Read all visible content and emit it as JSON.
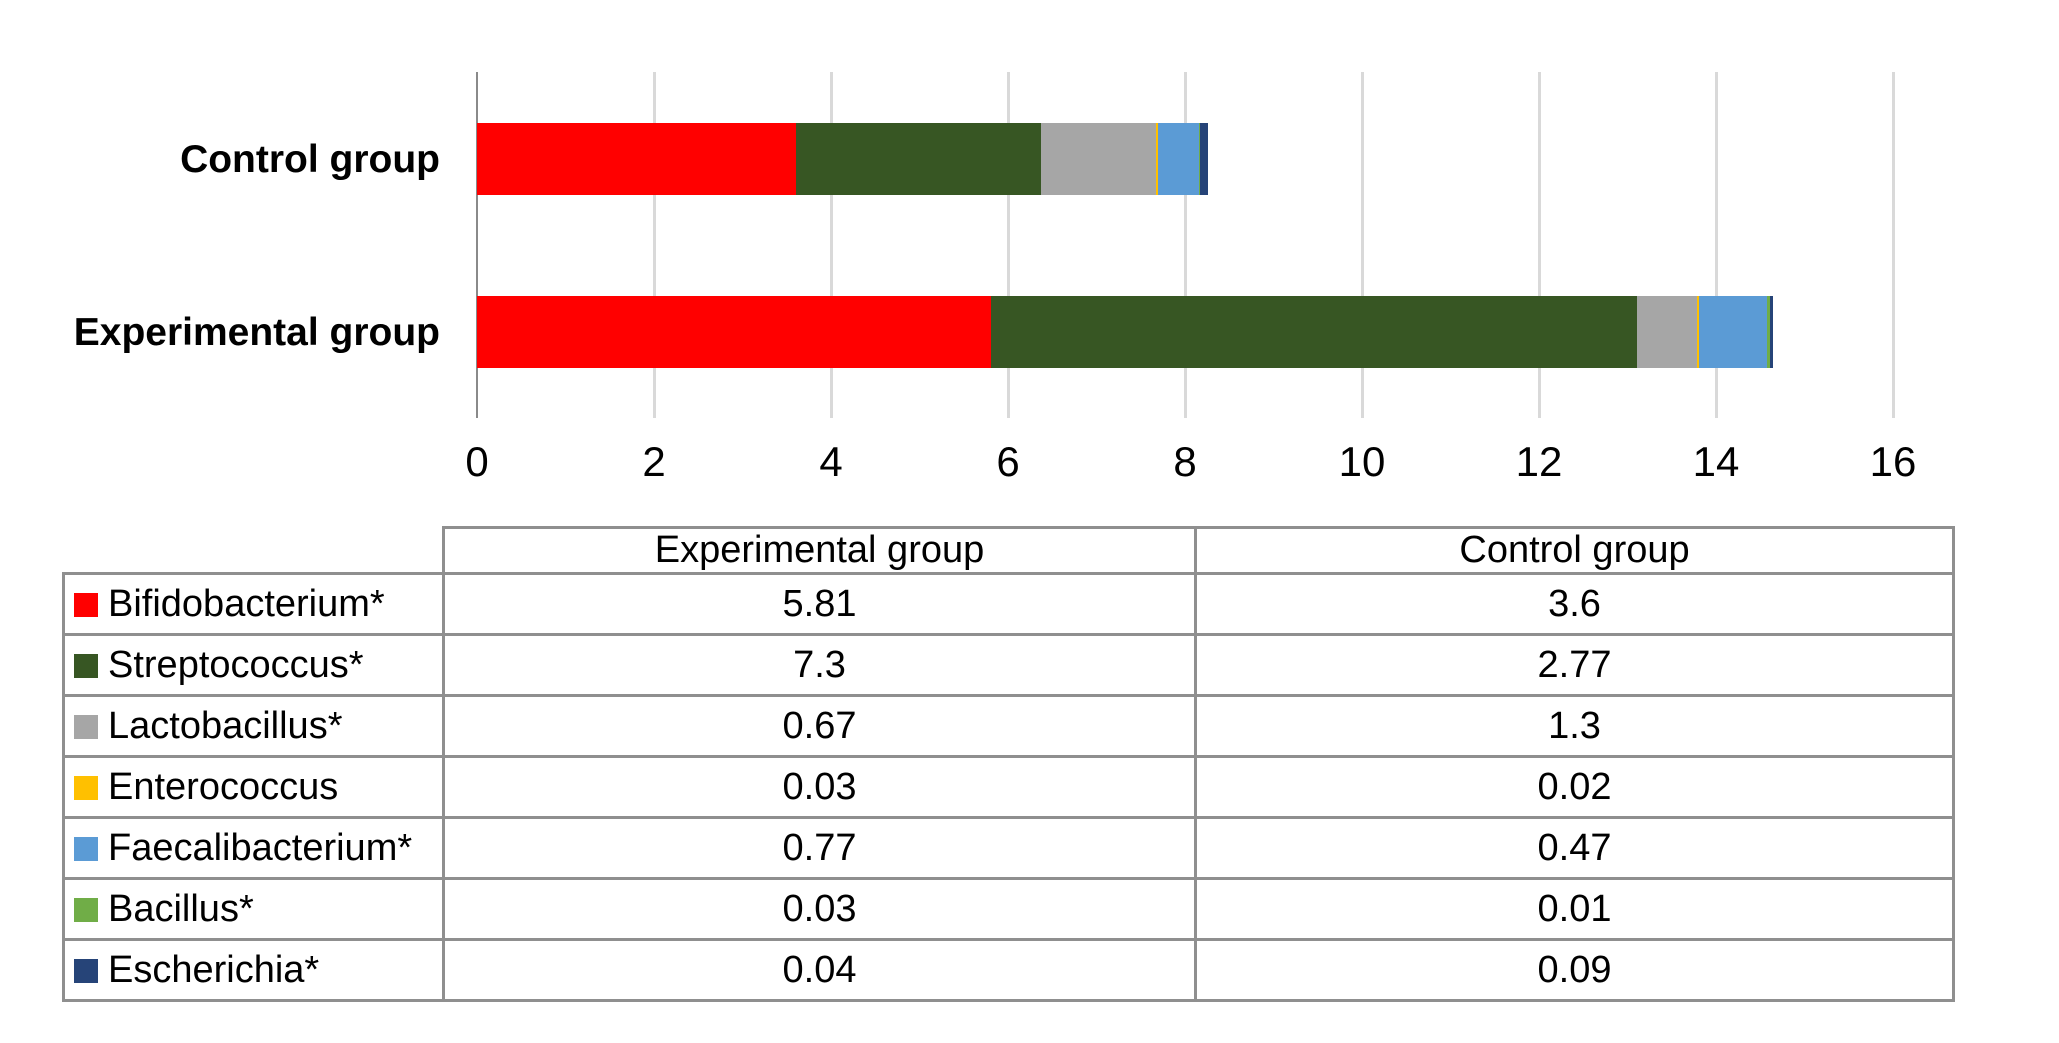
{
  "chart_data": {
    "type": "bar",
    "orientation": "horizontal",
    "stacked": true,
    "title": "",
    "xlabel": "",
    "ylabel": "",
    "xlim": [
      0,
      16
    ],
    "xticks": [
      0,
      2,
      4,
      6,
      8,
      10,
      12,
      14,
      16
    ],
    "grid": true,
    "legend_position": "table-below",
    "categories": [
      "Control group",
      "Experimental group"
    ],
    "series": [
      {
        "name": "Bifidobacterium*",
        "color": "#ff0000",
        "values": [
          3.6,
          5.81
        ]
      },
      {
        "name": "Streptococcus*",
        "color": "#375623",
        "values": [
          2.77,
          7.3
        ]
      },
      {
        "name": "Lactobacillus*",
        "color": "#a6a6a6",
        "values": [
          1.3,
          0.67
        ]
      },
      {
        "name": "Enterococcus",
        "color": "#ffc000",
        "values": [
          0.02,
          0.03
        ]
      },
      {
        "name": "Faecalibacterium*",
        "color": "#5b9bd5",
        "values": [
          0.47,
          0.77
        ]
      },
      {
        "name": "Bacillus*",
        "color": "#70ad47",
        "values": [
          0.01,
          0.03
        ]
      },
      {
        "name": "Escherichia*",
        "color": "#264478",
        "values": [
          0.09,
          0.04
        ]
      }
    ]
  },
  "table": {
    "col_headers": [
      "Experimental group",
      "Control group"
    ],
    "rows": [
      {
        "label": "Bifidobacterium*",
        "experimental": "5.81",
        "control": "3.6"
      },
      {
        "label": "Streptococcus*",
        "experimental": "7.3",
        "control": "2.77"
      },
      {
        "label": "Lactobacillus*",
        "experimental": "0.67",
        "control": "1.3"
      },
      {
        "label": "Enterococcus",
        "experimental": "0.03",
        "control": "0.02"
      },
      {
        "label": "Faecalibacterium*",
        "experimental": "0.77",
        "control": "0.47"
      },
      {
        "label": "Bacillus*",
        "experimental": "0.03",
        "control": "0.01"
      },
      {
        "label": "Escherichia*",
        "experimental": "0.04",
        "control": "0.09"
      }
    ]
  }
}
